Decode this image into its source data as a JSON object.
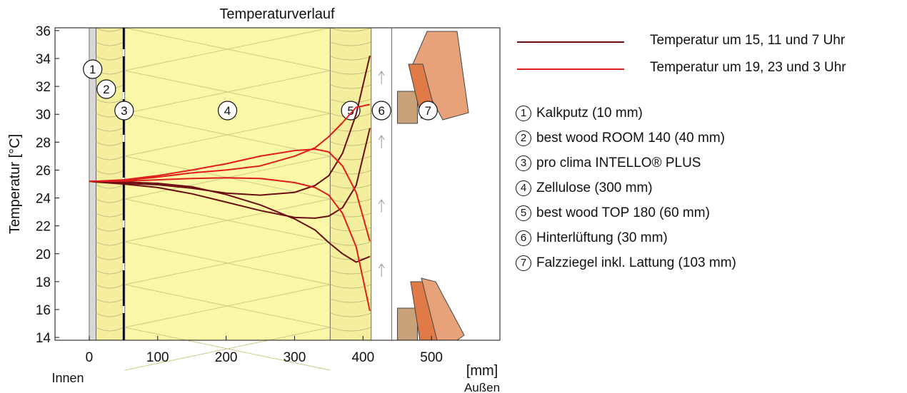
{
  "chart_data": {
    "type": "line",
    "title": "Temperaturverlauf",
    "ylabel": "Temperatur [°C]",
    "xlabel": "[mm]",
    "x_left_label": "Innen",
    "x_right_label": "Außen",
    "xlim": [
      -50,
      600
    ],
    "ylim": [
      13.8,
      36.2
    ],
    "xticks": [
      0,
      100,
      200,
      300,
      400,
      500
    ],
    "yticks": [
      14,
      16,
      18,
      20,
      22,
      24,
      26,
      28,
      30,
      32,
      34,
      36
    ],
    "grid": false,
    "legend_position": "right",
    "series_legend": [
      {
        "name": "Temperatur um 15, 11 und 7 Uhr",
        "color": "#6b0d12"
      },
      {
        "name": "Temperatur um 19, 23 und 3 Uhr",
        "color": "#e01d1d"
      }
    ],
    "series": [
      {
        "group": 0,
        "x": [
          0,
          10,
          50,
          100,
          150,
          200,
          250,
          300,
          330,
          350,
          370,
          390,
          410
        ],
        "y": [
          25.2,
          25.15,
          25.05,
          24.95,
          24.7,
          24.35,
          24.2,
          24.4,
          24.9,
          25.6,
          27.2,
          30.0,
          34.2
        ]
      },
      {
        "group": 0,
        "x": [
          0,
          10,
          50,
          100,
          150,
          200,
          250,
          300,
          330,
          350,
          370,
          390,
          410
        ],
        "y": [
          25.2,
          25.15,
          25.0,
          24.75,
          24.3,
          23.7,
          23.1,
          22.6,
          22.55,
          22.7,
          23.3,
          24.9,
          29.0
        ]
      },
      {
        "group": 0,
        "x": [
          0,
          10,
          50,
          100,
          150,
          200,
          250,
          300,
          330,
          350,
          370,
          390,
          410
        ],
        "y": [
          25.2,
          25.2,
          25.15,
          25.05,
          24.8,
          24.25,
          23.5,
          22.5,
          21.7,
          20.8,
          20.0,
          19.4,
          19.8
        ]
      },
      {
        "group": 1,
        "x": [
          0,
          10,
          50,
          100,
          150,
          200,
          250,
          300,
          330,
          350,
          370,
          390,
          410
        ],
        "y": [
          25.2,
          25.2,
          25.25,
          25.5,
          25.8,
          26.0,
          26.3,
          27.0,
          27.6,
          28.4,
          29.4,
          30.5,
          30.7
        ]
      },
      {
        "group": 1,
        "x": [
          0,
          10,
          50,
          100,
          150,
          200,
          250,
          300,
          330,
          350,
          370,
          390,
          410
        ],
        "y": [
          25.2,
          25.2,
          25.3,
          25.6,
          26.0,
          26.45,
          27.0,
          27.4,
          27.5,
          27.3,
          26.3,
          24.4,
          20.9
        ]
      },
      {
        "group": 1,
        "x": [
          0,
          10,
          50,
          100,
          150,
          200,
          250,
          300,
          330,
          350,
          370,
          390,
          410
        ],
        "y": [
          25.2,
          25.2,
          25.2,
          25.3,
          25.4,
          25.45,
          25.4,
          25.1,
          24.75,
          24.2,
          22.9,
          20.5,
          15.9
        ]
      }
    ],
    "layers": [
      {
        "num": "1",
        "label": "Kalkputz (10 mm)",
        "x0": 0,
        "x1": 10,
        "fill": "#d7d7d7"
      },
      {
        "num": "2",
        "label": "best wood ROOM 140 (40 mm)",
        "x0": 10,
        "x1": 50,
        "fill": "#f4ef9c"
      },
      {
        "num": "3",
        "label": "pro clima INTELLO® PLUS",
        "x0": 50,
        "x1": 52,
        "fill": "#000000"
      },
      {
        "num": "4",
        "label": "Zellulose (300 mm)",
        "x0": 52,
        "x1": 352,
        "fill": "#faf7a6"
      },
      {
        "num": "5",
        "label": "best wood TOP 180 (60 mm)",
        "x0": 352,
        "x1": 412,
        "fill": "#f4ef9c"
      },
      {
        "num": "6",
        "label": "Hinterlüftung (30 mm)",
        "x0": 412,
        "x1": 442,
        "fill": "#ffffff"
      },
      {
        "num": "7",
        "label": "Falzziegel inkl. Lattung (103 mm)",
        "x0": 442,
        "x1": 545,
        "fill": "#e07a46"
      }
    ]
  }
}
